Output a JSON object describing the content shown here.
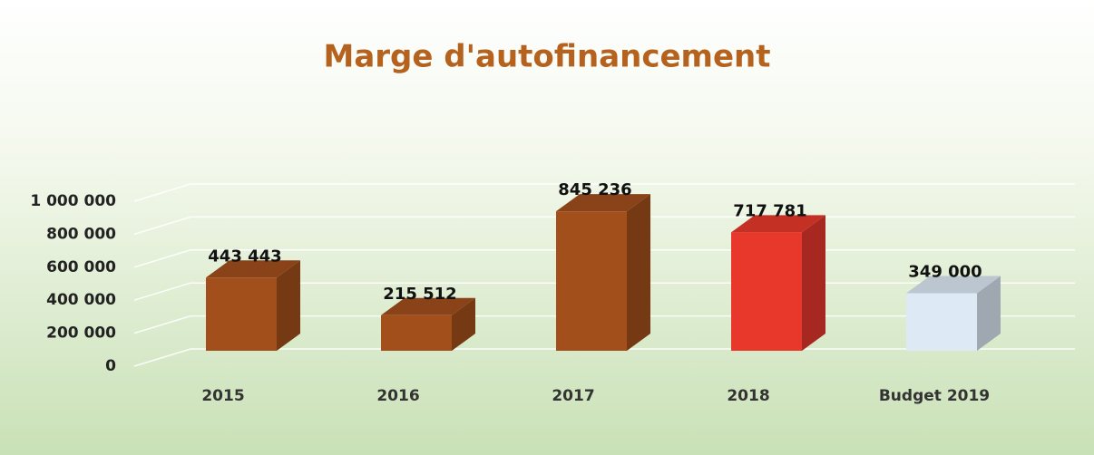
{
  "chart_data": {
    "type": "bar3d",
    "title": "Marge d'autofinancement",
    "categories": [
      "2015",
      "2016",
      "2017",
      "2018",
      "Budget 2019"
    ],
    "values": [
      443443,
      215512,
      845236,
      717781,
      349000
    ],
    "value_labels": [
      "443 443",
      "215 512",
      "845 236",
      "717 781",
      "349 000"
    ],
    "colors": [
      "#a24f1c",
      "#a24f1c",
      "#a24f1c",
      "#e8382c",
      "#dde9f5"
    ],
    "ylim": [
      0,
      1000000
    ],
    "yticks": [
      {
        "value": 0,
        "label": "0"
      },
      {
        "value": 200000,
        "label": "200 000"
      },
      {
        "value": 400000,
        "label": "400 000"
      },
      {
        "value": 600000,
        "label": "600 000"
      },
      {
        "value": 800000,
        "label": "800 000"
      },
      {
        "value": 1000000,
        "label": "1 000 000"
      }
    ],
    "grid": true
  }
}
